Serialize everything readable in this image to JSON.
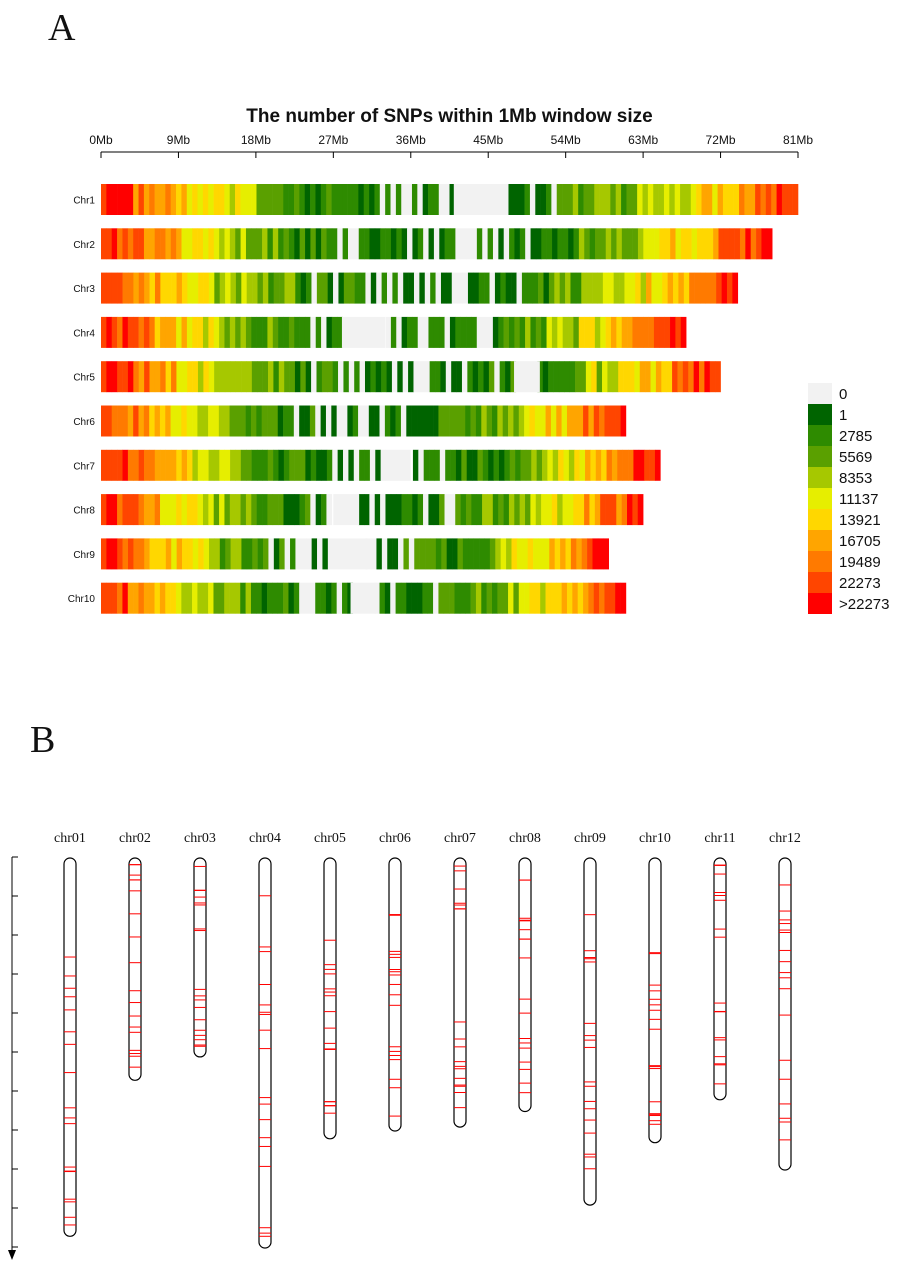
{
  "panel_a": {
    "letter": "A",
    "chart_data": {
      "type": "heatmap",
      "title": "The number of SNPs within 1Mb window size",
      "x_unit": "Mb",
      "x_range": [
        0,
        81
      ],
      "x_ticks": [
        "0Mb",
        "9Mb",
        "18Mb",
        "27Mb",
        "36Mb",
        "45Mb",
        "54Mb",
        "63Mb",
        "72Mb",
        "81Mb"
      ],
      "chromosomes": [
        {
          "name": "Chr1",
          "length_mb": 81,
          "gap_mb": [
            41,
            45
          ]
        },
        {
          "name": "Chr2",
          "length_mb": 78,
          "gap_mb": null
        },
        {
          "name": "Chr3",
          "length_mb": 74,
          "gap_mb": null
        },
        {
          "name": "Chr4",
          "length_mb": 68,
          "gap_mb": [
            28,
            33
          ]
        },
        {
          "name": "Chr5",
          "length_mb": 72,
          "gap_mb": [
            48,
            51
          ]
        },
        {
          "name": "Chr6",
          "length_mb": 61,
          "gap_mb": null
        },
        {
          "name": "Chr7",
          "length_mb": 65,
          "gap_mb": [
            33,
            36
          ]
        },
        {
          "name": "Chr8",
          "length_mb": 63,
          "gap_mb": [
            27,
            30
          ]
        },
        {
          "name": "Chr9",
          "length_mb": 59,
          "gap_mb": [
            27,
            31
          ]
        },
        {
          "name": "Chr10",
          "length_mb": 61,
          "gap_mb": [
            29,
            32
          ]
        }
      ],
      "legend": {
        "labels": [
          "0",
          "1",
          "2785",
          "5569",
          "8353",
          "11137",
          "13921",
          "16705",
          "19489",
          "22273",
          ">22273"
        ],
        "colors": [
          "#f2f2f2",
          "#006400",
          "#2e8b00",
          "#5aa000",
          "#a6c800",
          "#e6ee00",
          "#ffd700",
          "#ffa500",
          "#ff7a00",
          "#ff4500",
          "#ff0000"
        ]
      }
    }
  },
  "panel_b": {
    "letter": "B",
    "chart_data": {
      "type": "ideogram",
      "chromosomes": [
        {
          "name": "chr01",
          "rel_length": 0.97
        },
        {
          "name": "chr02",
          "rel_length": 0.57
        },
        {
          "name": "chr03",
          "rel_length": 0.51
        },
        {
          "name": "chr04",
          "rel_length": 1.0
        },
        {
          "name": "chr05",
          "rel_length": 0.72
        },
        {
          "name": "chr06",
          "rel_length": 0.7
        },
        {
          "name": "chr07",
          "rel_length": 0.69
        },
        {
          "name": "chr08",
          "rel_length": 0.65
        },
        {
          "name": "chr09",
          "rel_length": 0.89
        },
        {
          "name": "chr10",
          "rel_length": 0.73
        },
        {
          "name": "chr11",
          "rel_length": 0.62
        },
        {
          "name": "chr12",
          "rel_length": 0.8
        }
      ],
      "axis_ticks": 10,
      "marker_color": "#ff0000"
    }
  }
}
